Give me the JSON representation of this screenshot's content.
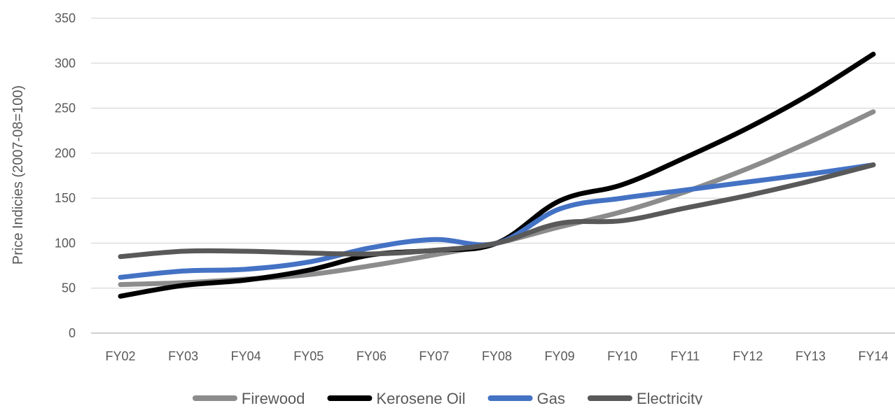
{
  "chart_data": {
    "type": "line",
    "title": "",
    "xlabel": "",
    "ylabel": "Price Indicies (2007-08=100)",
    "categories": [
      "FY02",
      "FY03",
      "FY04",
      "FY05",
      "FY06",
      "FY07",
      "FY08",
      "FY09",
      "FY10",
      "FY11",
      "FY12",
      "FY13",
      "FY14"
    ],
    "ylim": [
      0,
      350
    ],
    "yticks": [
      "0",
      "50",
      "100",
      "150",
      "200",
      "250",
      "300",
      "350"
    ],
    "grid": "horizontal",
    "legend_position": "bottom",
    "series": [
      {
        "name": "Firewood",
        "color": "#8c8c8c",
        "values": [
          54,
          56,
          60,
          65,
          75,
          87,
          100,
          118,
          135,
          157,
          183,
          213,
          246
        ]
      },
      {
        "name": "Kerosene Oil",
        "color": "#000000",
        "values": [
          41,
          53,
          59,
          70,
          87,
          92,
          100,
          147,
          165,
          195,
          228,
          266,
          310
        ]
      },
      {
        "name": "Gas",
        "color": "#4472c4",
        "values": [
          62,
          69,
          71,
          79,
          95,
          104,
          100,
          138,
          150,
          159,
          168,
          177,
          187
        ]
      },
      {
        "name": "Electricity",
        "color": "#595959",
        "values": [
          85,
          91,
          91,
          89,
          88,
          92,
          100,
          122,
          125,
          139,
          153,
          169,
          187
        ]
      }
    ]
  }
}
